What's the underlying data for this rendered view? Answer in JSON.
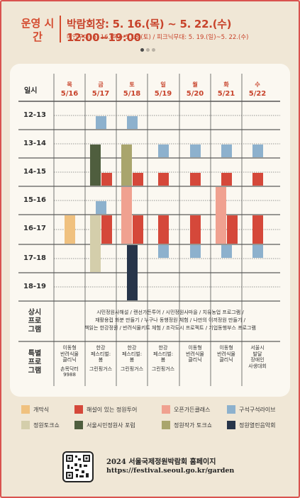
{
  "header": {
    "label": "운영 시간",
    "main": "박람회장: 5. 16.(목) ~ 5. 22.(수) 12:00~19:00",
    "sub": "메인무대: 5. 16.(목)~5.18.(토) / 피크닉무대: 5. 19.(일)~5. 22.(수)"
  },
  "schedule": {
    "corner_label": "일시",
    "days": [
      {
        "name": "목",
        "date": "5/16"
      },
      {
        "name": "금",
        "date": "5/17"
      },
      {
        "name": "토",
        "date": "5/18"
      },
      {
        "name": "일",
        "date": "5/19"
      },
      {
        "name": "월",
        "date": "5/20"
      },
      {
        "name": "화",
        "date": "5/21"
      },
      {
        "name": "수",
        "date": "5/22"
      }
    ],
    "hours": [
      "12-13",
      "13-14",
      "14-15",
      "15-16",
      "16-17",
      "17-18",
      "18-19"
    ],
    "events": [
      {
        "day": 0,
        "start": 16,
        "end": 17,
        "type": "opening"
      },
      {
        "day": 1,
        "start": 12.5,
        "end": 13,
        "type": "tour"
      },
      {
        "day": 1,
        "start": 13.5,
        "end": 15,
        "type": "forum"
      },
      {
        "day": 1,
        "start": 14.5,
        "end": 15,
        "type": "guided"
      },
      {
        "day": 1,
        "start": 15.5,
        "end": 16,
        "type": "tour"
      },
      {
        "day": 1,
        "start": 16,
        "end": 18,
        "type": "talk"
      },
      {
        "day": 1,
        "start": 16,
        "end": 17,
        "type": "guided"
      },
      {
        "day": 2,
        "start": 12.5,
        "end": 13,
        "type": "tour"
      },
      {
        "day": 2,
        "start": 13.5,
        "end": 15,
        "type": "writer"
      },
      {
        "day": 2,
        "start": 14.5,
        "end": 15,
        "type": "guided"
      },
      {
        "day": 2,
        "start": 15,
        "end": 17,
        "type": "class"
      },
      {
        "day": 2,
        "start": 16,
        "end": 17,
        "type": "guided"
      },
      {
        "day": 2,
        "start": 17,
        "end": 19,
        "type": "concert"
      },
      {
        "day": 3,
        "start": 13.5,
        "end": 14,
        "type": "tour"
      },
      {
        "day": 3,
        "start": 14.5,
        "end": 15,
        "type": "guided"
      },
      {
        "day": 3,
        "start": 16,
        "end": 17,
        "type": "guided"
      },
      {
        "day": 3,
        "start": 17,
        "end": 17.5,
        "type": "tour"
      },
      {
        "day": 4,
        "start": 13.5,
        "end": 14,
        "type": "tour"
      },
      {
        "day": 4,
        "start": 14.5,
        "end": 15,
        "type": "guided"
      },
      {
        "day": 4,
        "start": 16,
        "end": 17,
        "type": "guided"
      },
      {
        "day": 4,
        "start": 17,
        "end": 17.5,
        "type": "tour"
      },
      {
        "day": 5,
        "start": 13.5,
        "end": 14,
        "type": "tour"
      },
      {
        "day": 5,
        "start": 14.5,
        "end": 15,
        "type": "guided"
      },
      {
        "day": 5,
        "start": 15,
        "end": 17,
        "type": "class"
      },
      {
        "day": 5,
        "start": 16,
        "end": 17,
        "type": "guided"
      },
      {
        "day": 5,
        "start": 17,
        "end": 17.5,
        "type": "tour"
      },
      {
        "day": 6,
        "start": 13.5,
        "end": 14,
        "type": "tour"
      },
      {
        "day": 6,
        "start": 14.5,
        "end": 15,
        "type": "guided"
      },
      {
        "day": 6,
        "start": 16,
        "end": 17,
        "type": "guided"
      },
      {
        "day": 6,
        "start": 17,
        "end": 17.5,
        "type": "tour"
      }
    ]
  },
  "programs": {
    "label": "상시 프로 그램",
    "lines": [
      "시민정원사해설 / 랜선가든투어 / 시민정원사마을 / 치유농업 프로그램 /",
      "재활용컵 화분 만들기 / 누구나 동행정원 체험 / 나만의 이끼정원 만들기 /",
      "책읽는 한강정원 / 반려식물키트 체험 / 조각도시 프로젝트 / 기업동행부스 프로그램"
    ]
  },
  "special": {
    "label": "특별 프로 그램",
    "cells": [
      {
        "main": [
          "이동형",
          "반려식물",
          "클리닉"
        ],
        "extra": [
          "손목닥터",
          "9988"
        ]
      },
      {
        "main": [
          "한강",
          "페스티벌:",
          "봄"
        ],
        "extra": [
          "그린핑거스"
        ]
      },
      {
        "main": [
          "한강",
          "페스티벌:",
          "봄"
        ],
        "extra": [
          "그린핑거스"
        ]
      },
      {
        "main": [
          "한강",
          "페스티벌:",
          "봄"
        ],
        "extra": [
          "그린핑거스"
        ]
      },
      {
        "main": [
          "이동형",
          "반려식물",
          "클리닉"
        ],
        "extra": []
      },
      {
        "main": [
          "이동형",
          "반려식물",
          "클리닉"
        ],
        "extra": []
      },
      {
        "main": [
          "서울시",
          "발달",
          "장애인",
          "사생대회"
        ],
        "extra": []
      }
    ]
  },
  "legend": [
    {
      "key": "opening",
      "label": "개막식",
      "color": "#f0c17f"
    },
    {
      "key": "guided",
      "label": "해설이 있는 정원투어",
      "color": "#d5483a"
    },
    {
      "key": "class",
      "label": "오픈가든클래스",
      "color": "#f0a190"
    },
    {
      "key": "tour",
      "label": "구석구석라이브",
      "color": "#8db1cd"
    },
    {
      "key": "talk",
      "label": "정원토크쇼",
      "color": "#d4ceab"
    },
    {
      "key": "forum",
      "label": "서울시민정원사 포럼",
      "color": "#4f5e3e"
    },
    {
      "key": "writer",
      "label": "정원작가 토크쇼",
      "color": "#a9a56d"
    },
    {
      "key": "concert",
      "label": "정원열린음악회",
      "color": "#27354a"
    }
  ],
  "footer": {
    "title": "2024 서울국제정원박람회 홈페이지",
    "url": "https://festival.seoul.go.kr/garden"
  }
}
